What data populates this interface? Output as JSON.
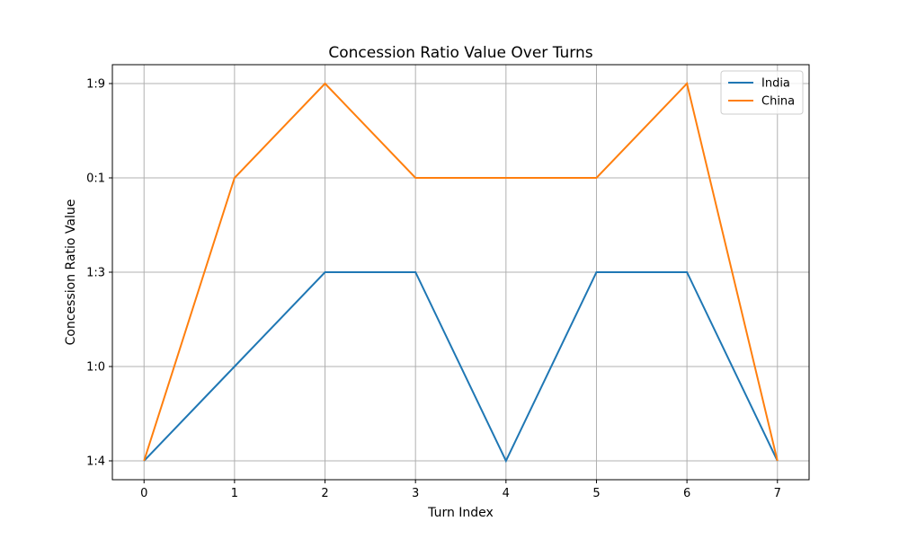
{
  "chart_data": {
    "type": "line",
    "title": "Concession Ratio Value Over Turns",
    "xlabel": "Turn Index",
    "ylabel": "Concession Ratio Value",
    "x": [
      0,
      1,
      2,
      3,
      4,
      5,
      6,
      7
    ],
    "x_ticks": [
      "0",
      "1",
      "2",
      "3",
      "4",
      "5",
      "6",
      "7"
    ],
    "y_categories": [
      "1:4",
      "1:0",
      "1:3",
      "0:1",
      "1:9"
    ],
    "series": [
      {
        "name": "India",
        "color": "#1f77b4",
        "values": [
          "1:4",
          "1:0",
          "1:3",
          "1:3",
          "1:4",
          "1:3",
          "1:3",
          "1:4"
        ]
      },
      {
        "name": "China",
        "color": "#ff7f0e",
        "values": [
          "1:4",
          "0:1",
          "1:9",
          "0:1",
          "0:1",
          "0:1",
          "1:9",
          "1:4"
        ]
      }
    ],
    "grid": true,
    "legend_position": "top-right"
  }
}
